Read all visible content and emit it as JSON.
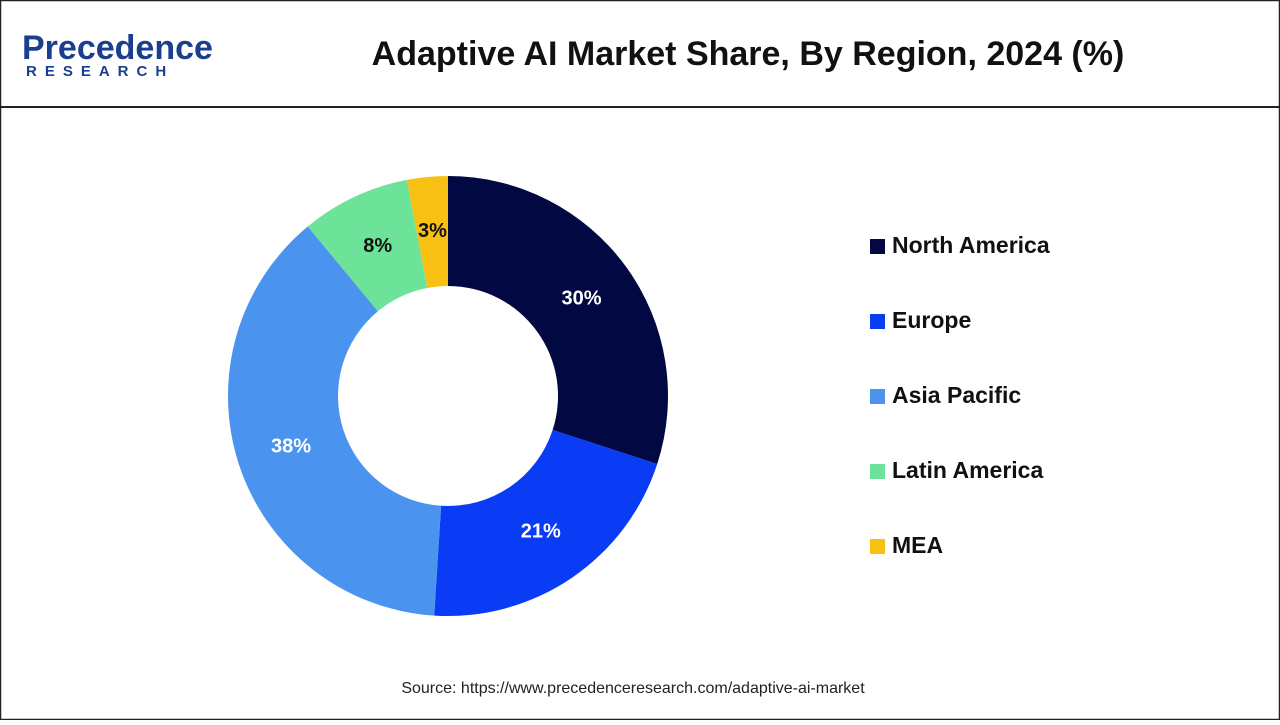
{
  "logo": {
    "name": "Precedence",
    "sub": "RESEARCH"
  },
  "chart_data": {
    "type": "donut",
    "title": "Adaptive AI Market Share, By Region, 2024 (%)",
    "categories": [
      "North America",
      "Europe",
      "Asia Pacific",
      "Latin America",
      "MEA"
    ],
    "values": [
      30,
      21,
      38,
      8,
      3
    ],
    "value_labels": [
      "30%",
      "21%",
      "38%",
      "8%",
      "3%"
    ],
    "colors": [
      "#020842",
      "#0a3cf5",
      "#4a93ee",
      "#6de39a",
      "#f8c012"
    ],
    "legend": "right",
    "source": "Source: https://www.precedenceresearch.com/adaptive-ai-market"
  }
}
